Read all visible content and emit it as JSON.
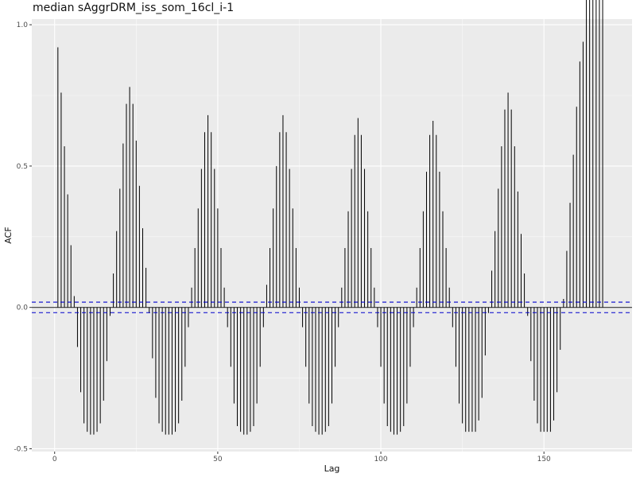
{
  "chart_data": {
    "type": "acf",
    "title": "median sAggrDRM_iss_som_16cl_i-1",
    "xlabel": "Lag",
    "ylabel": "ACF",
    "xlim": [
      -7,
      177
    ],
    "ylim": [
      -0.51,
      1.02
    ],
    "x_ticks": [
      0,
      50,
      100,
      150
    ],
    "y_ticks": [
      -0.5,
      0.0,
      0.5,
      1.0
    ],
    "y_tick_labels": [
      "-0.5",
      "0.0",
      "0.5",
      "1.0"
    ],
    "confidence_band": [
      -0.0185,
      0.0185
    ],
    "zero_line": true,
    "grid": true,
    "colors": {
      "panel_background": "#ebebeb",
      "gridline": "#ffffff",
      "bar": "#000000",
      "confidence_line": "#0000cc"
    },
    "lags": [
      1,
      2,
      3,
      4,
      5,
      6,
      7,
      8,
      9,
      10,
      11,
      12,
      13,
      14,
      15,
      16,
      17,
      18,
      19,
      20,
      21,
      22,
      23,
      24,
      25,
      26,
      27,
      28,
      29,
      30,
      31,
      32,
      33,
      34,
      35,
      36,
      37,
      38,
      39,
      40,
      41,
      42,
      43,
      44,
      45,
      46,
      47,
      48,
      49,
      50,
      51,
      52,
      53,
      54,
      55,
      56,
      57,
      58,
      59,
      60,
      61,
      62,
      63,
      64,
      65,
      66,
      67,
      68,
      69,
      70,
      71,
      72,
      73,
      74,
      75,
      76,
      77,
      78,
      79,
      80,
      81,
      82,
      83,
      84,
      85,
      86,
      87,
      88,
      89,
      90,
      91,
      92,
      93,
      94,
      95,
      96,
      97,
      98,
      99,
      100,
      101,
      102,
      103,
      104,
      105,
      106,
      107,
      108,
      109,
      110,
      111,
      112,
      113,
      114,
      115,
      116,
      117,
      118,
      119,
      120,
      121,
      122,
      123,
      124,
      125,
      126,
      127,
      128,
      129,
      130,
      131,
      132,
      133,
      134,
      135,
      136,
      137,
      138,
      139,
      140,
      141,
      142,
      143,
      144,
      145,
      146,
      147,
      148,
      149,
      150,
      151,
      152,
      153,
      154,
      155,
      156,
      157,
      158,
      159,
      160,
      161,
      162,
      163,
      164,
      165,
      166,
      167,
      168
    ],
    "acf": [
      0.92,
      0.76,
      0.57,
      0.4,
      0.22,
      0.04,
      -0.14,
      -0.3,
      -0.41,
      -0.44,
      -0.45,
      -0.45,
      -0.44,
      -0.41,
      -0.33,
      -0.19,
      -0.03,
      0.12,
      0.27,
      0.42,
      0.58,
      0.72,
      0.78,
      0.72,
      0.59,
      0.43,
      0.28,
      0.14,
      -0.02,
      -0.18,
      -0.32,
      -0.41,
      -0.44,
      -0.45,
      -0.45,
      -0.45,
      -0.44,
      -0.41,
      -0.33,
      -0.21,
      -0.07,
      0.07,
      0.21,
      0.35,
      0.49,
      0.62,
      0.68,
      0.62,
      0.49,
      0.35,
      0.21,
      0.07,
      -0.07,
      -0.21,
      -0.34,
      -0.42,
      -0.44,
      -0.45,
      -0.45,
      -0.44,
      -0.42,
      -0.34,
      -0.21,
      -0.07,
      0.08,
      0.21,
      0.35,
      0.5,
      0.62,
      0.68,
      0.62,
      0.49,
      0.35,
      0.21,
      0.07,
      -0.07,
      -0.21,
      -0.34,
      -0.42,
      -0.44,
      -0.45,
      -0.45,
      -0.44,
      -0.42,
      -0.34,
      -0.21,
      -0.07,
      0.07,
      0.21,
      0.34,
      0.49,
      0.61,
      0.67,
      0.61,
      0.49,
      0.34,
      0.21,
      0.07,
      -0.07,
      -0.21,
      -0.34,
      -0.42,
      -0.44,
      -0.45,
      -0.45,
      -0.44,
      -0.42,
      -0.34,
      -0.21,
      -0.07,
      0.07,
      0.21,
      0.34,
      0.48,
      0.61,
      0.66,
      0.61,
      0.48,
      0.34,
      0.21,
      0.07,
      -0.07,
      -0.21,
      -0.34,
      -0.41,
      -0.44,
      -0.44,
      -0.44,
      -0.44,
      -0.4,
      -0.32,
      -0.17,
      -0.02,
      0.13,
      0.27,
      0.42,
      0.57,
      0.7,
      0.76,
      0.7,
      0.57,
      0.41,
      0.26,
      0.12,
      -0.03,
      -0.19,
      -0.33,
      -0.41,
      -0.44,
      -0.44,
      -0.44,
      -0.44,
      -0.4,
      -0.3,
      -0.15,
      0.03,
      0.2,
      0.37,
      0.54,
      0.71,
      0.87,
      0.94
    ]
  }
}
